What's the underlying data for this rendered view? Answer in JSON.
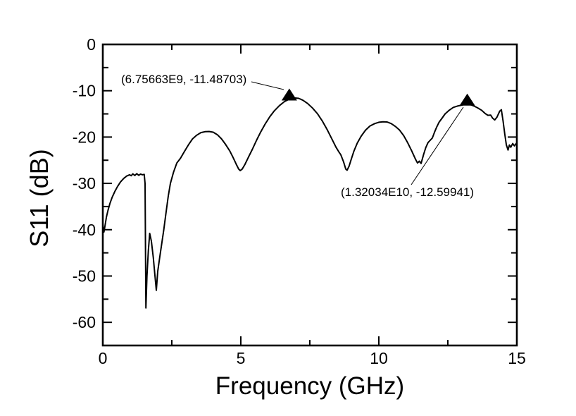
{
  "chart_data": {
    "type": "line",
    "title": "",
    "xlabel": "Frequency (GHz)",
    "ylabel": "S11 (dB)",
    "xlim": [
      0,
      15
    ],
    "ylim": [
      -65,
      0
    ],
    "x_major_ticks": [
      0,
      5,
      10,
      15
    ],
    "x_minor_ticks": [
      2.5,
      7.5,
      12.5
    ],
    "y_major_ticks": [
      0,
      -10,
      -20,
      -30,
      -40,
      -50,
      -60
    ],
    "y_minor_ticks": [
      -5,
      -15,
      -25,
      -35,
      -45,
      -55
    ],
    "grid": false,
    "legend": "none",
    "line_color": "#000000",
    "frame_color": "#000000",
    "background_color": "#ffffff",
    "series": [
      {
        "name": "S11",
        "x": [
          0,
          0.04,
          0.08,
          0.13,
          0.19,
          0.26,
          0.34,
          0.43,
          0.53,
          0.64,
          0.76,
          0.87,
          0.97,
          1.03,
          1.09,
          1.16,
          1.23,
          1.3,
          1.37,
          1.44,
          1.5,
          1.53,
          1.56,
          1.6,
          1.65,
          1.7,
          1.76,
          1.83,
          1.89,
          1.94,
          1.99,
          2.06,
          2.13,
          2.21,
          2.29,
          2.37,
          2.45,
          2.56,
          2.68,
          2.81,
          2.95,
          3.1,
          3.25,
          3.4,
          3.55,
          3.7,
          3.85,
          4.0,
          4.15,
          4.3,
          4.45,
          4.6,
          4.72,
          4.83,
          4.92,
          4.98,
          5.05,
          5.15,
          5.28,
          5.42,
          5.57,
          5.72,
          5.88,
          6.05,
          6.22,
          6.4,
          6.58,
          6.76,
          6.95,
          7.1,
          7.25,
          7.42,
          7.6,
          7.78,
          7.95,
          8.12,
          8.28,
          8.45,
          8.55,
          8.62,
          8.72,
          8.8,
          8.85,
          8.92,
          9.0,
          9.1,
          9.22,
          9.36,
          9.52,
          9.68,
          9.85,
          10.0,
          10.15,
          10.3,
          10.45,
          10.6,
          10.75,
          10.9,
          11.05,
          11.2,
          11.33,
          11.4,
          11.47,
          11.53,
          11.62,
          11.7,
          11.78,
          11.86,
          11.94,
          12.02,
          12.1,
          12.18,
          12.28,
          12.4,
          12.55,
          12.7,
          12.85,
          13.0,
          13.1,
          13.2,
          13.32,
          13.45,
          13.58,
          13.72,
          13.85,
          13.95,
          14.05,
          14.12,
          14.2,
          14.28,
          14.38,
          14.44,
          14.5,
          14.56,
          14.62,
          14.68,
          14.73,
          14.78,
          14.85,
          14.91,
          15.0
        ],
        "y": [
          -38.8,
          -40.5,
          -39.2,
          -37.3,
          -35.8,
          -34.3,
          -33.0,
          -31.8,
          -30.7,
          -29.7,
          -28.9,
          -28.4,
          -28.15,
          -28.35,
          -27.95,
          -28.3,
          -27.9,
          -28.25,
          -28.0,
          -28.15,
          -28.05,
          -30.0,
          -56.9,
          -50.0,
          -44.5,
          -40.8,
          -42.5,
          -46.0,
          -50.0,
          -53.1,
          -49.0,
          -46.0,
          -43.2,
          -40.0,
          -36.3,
          -32.8,
          -30.0,
          -27.6,
          -25.6,
          -24.6,
          -23.2,
          -21.7,
          -20.4,
          -19.6,
          -19.05,
          -18.85,
          -18.8,
          -18.95,
          -19.5,
          -20.4,
          -21.6,
          -23.0,
          -24.4,
          -25.8,
          -26.9,
          -27.25,
          -26.9,
          -25.9,
          -24.3,
          -22.6,
          -20.7,
          -18.9,
          -17.2,
          -15.6,
          -14.3,
          -13.2,
          -12.35,
          -11.8,
          -11.55,
          -11.65,
          -12.05,
          -12.75,
          -13.75,
          -15.0,
          -16.5,
          -18.3,
          -20.2,
          -22.2,
          -23.2,
          -23.8,
          -25.3,
          -26.9,
          -27.15,
          -26.3,
          -24.8,
          -23.0,
          -21.3,
          -19.8,
          -18.5,
          -17.6,
          -17.1,
          -16.8,
          -16.7,
          -16.75,
          -17.1,
          -17.7,
          -18.5,
          -19.7,
          -21.3,
          -23.1,
          -24.8,
          -25.6,
          -25.2,
          -25.7,
          -23.8,
          -22.3,
          -21.2,
          -20.7,
          -20.2,
          -18.9,
          -17.8,
          -16.8,
          -16.0,
          -15.0,
          -14.2,
          -13.6,
          -13.3,
          -13.1,
          -12.95,
          -12.85,
          -13.0,
          -13.3,
          -13.7,
          -14.2,
          -14.9,
          -15.3,
          -15.25,
          -15.9,
          -16.3,
          -15.7,
          -14.4,
          -14.1,
          -16.5,
          -19.3,
          -21.7,
          -22.8,
          -21.7,
          -22.2,
          -21.4,
          -21.9,
          -21.2
        ]
      }
    ],
    "markers": [
      {
        "x_ghz": 6.75663,
        "y_db": -11.48703,
        "label": "(6.75663E9, -11.48703)",
        "shape": "filled-triangle-up",
        "color": "#000000"
      },
      {
        "x_ghz": 13.2034,
        "y_db": -12.59941,
        "label": "(1.32034E10, -12.59941)",
        "shape": "filled-triangle-up",
        "color": "#000000"
      }
    ]
  }
}
